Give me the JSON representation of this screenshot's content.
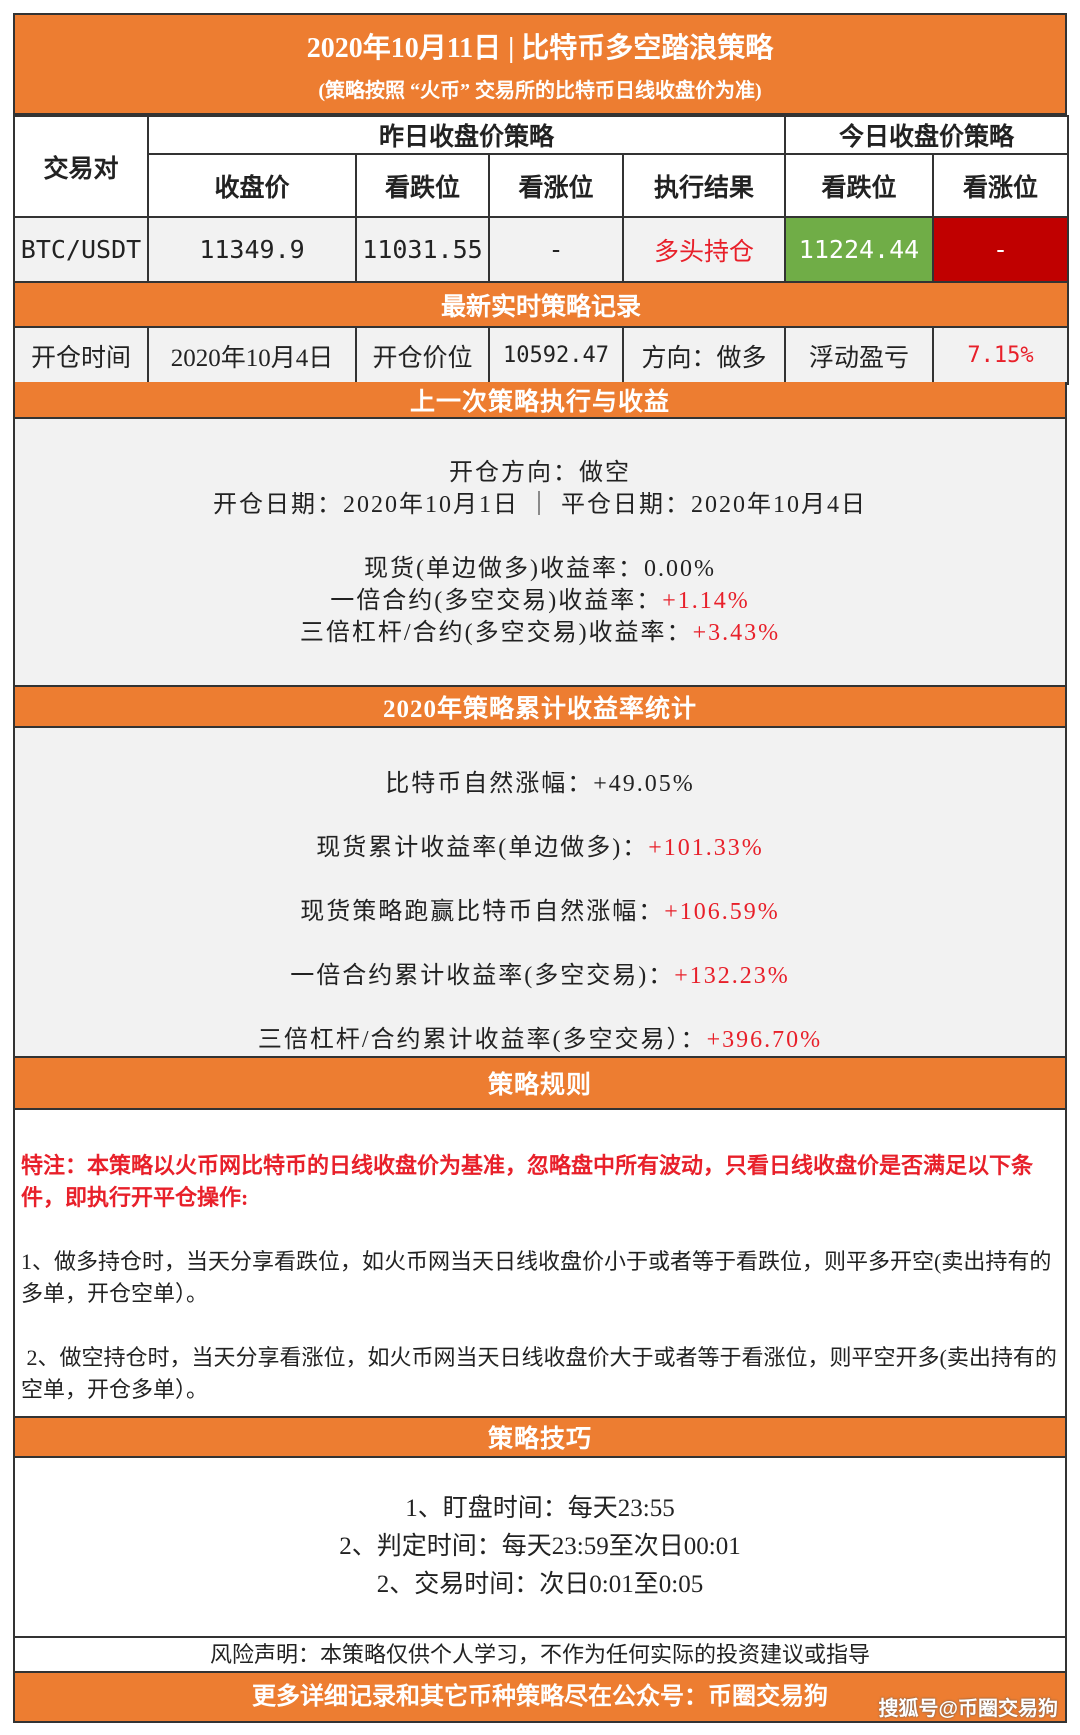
{
  "header": {
    "title": "2020年10月11日 | 比特币多空踏浪策略",
    "subtitle": "(策略按照 “火币” 交易所的比特币日线收盘价为准)"
  },
  "table": {
    "pair_label": "交易对",
    "yesterday_group": "昨日收盘价策略",
    "today_group": "今日收盘价策略",
    "columns": [
      "收盘价",
      "看跌位",
      "看涨位",
      "执行结果",
      "看跌位",
      "看涨位"
    ],
    "row": {
      "pair": "BTC/USDT",
      "close": "11349.9",
      "bear": "11031.55",
      "bull": "-",
      "result": "多头持仓",
      "today_bear": "11224.44",
      "today_bull": "-"
    }
  },
  "realtime": {
    "title": "最新实时策略记录",
    "open_time_label": "开仓时间",
    "open_time": "2020年10月4日",
    "open_price_label": "开仓价位",
    "open_price": "10592.47",
    "direction": "方向：做多",
    "pnl_label": "浮动盈亏",
    "pnl": "7.15%"
  },
  "last": {
    "title": "上一次策略执行与收益",
    "direction": "开仓方向：做空",
    "dates": "开仓日期：2020年10月1日 ｜ 平仓日期：2020年10月4日",
    "items": [
      {
        "label": "现货(单边做多)收益率：",
        "value": "0.00%",
        "red": false
      },
      {
        "label": "一倍合约(多空交易)收益率：",
        "value": "+1.14%",
        "red": true
      },
      {
        "label": "三倍杠杆/合约(多空交易)收益率：",
        "value": "+3.43%",
        "red": true
      }
    ]
  },
  "stats": {
    "title": "2020年策略累计收益率统计",
    "items": [
      {
        "label": "比特币自然涨幅：",
        "value": "+49.05%",
        "red": false
      },
      {
        "label": "现货累计收益率(单边做多)：",
        "value": "+101.33%",
        "red": true
      },
      {
        "label": "现货策略跑赢比特币自然涨幅：",
        "value": "+106.59%",
        "red": true
      },
      {
        "label": "一倍合约累计收益率(多空交易)：",
        "value": "+132.23%",
        "red": true
      },
      {
        "label": "三倍杠杆/合约累计收益率(多空交易）：",
        "value": "+396.70%",
        "red": true
      }
    ]
  },
  "rules": {
    "title": "策略规则",
    "note": "特注：本策略以火币网比特币的日线收盘价为基准，忽略盘中所有波动，只看日线收盘价是否满足以下条件，即执行开平仓操作:",
    "items": [
      "1、做多持仓时，当天分享看跌位，如火币网当天日线收盘价小于或者等于看跌位，则平多开空(卖出持有的多单，开仓空单）。",
      " 2、做空持仓时，当天分享看涨位，如火币网当天日线收盘价大于或者等于看涨位，则平空开多(卖出持有的空单，开仓多单）。"
    ]
  },
  "tips": {
    "title": "策略技巧",
    "items": [
      "1、盯盘时间：每天23:55",
      "2、判定时间：每天23:59至次日00:01",
      "2、交易时间：次日0:01至0:05"
    ]
  },
  "risk": "风险声明：本策略仅供个人学习，不作为任何实际的投资建议或指导",
  "footer": "更多详细记录和其它币种策略尽在公众号：币圈交易狗",
  "watermark": "搜狐号@币圈交易狗",
  "colors": {
    "orange": "#ED7D31",
    "green": "#70AD47",
    "dark_red": "#C00000",
    "red_text": "#E8202A"
  }
}
